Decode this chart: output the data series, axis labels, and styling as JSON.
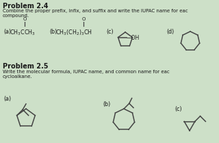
{
  "background_color": "#cde0c8",
  "title1": "Problem 2.4",
  "desc1a": "Combine the proper prefix, infix, and suffix and write the IUPAC name for eac",
  "desc1b": "compound.",
  "title2": "Problem 2.5",
  "desc2a": "Write the molecular formula, IUPAC name, and common name for eac",
  "desc2b": "cycloalkane.",
  "text_color": "#1a1a1a",
  "line_color": "#444444",
  "fig_w": 3.2,
  "fig_h": 2.09,
  "dpi": 100
}
